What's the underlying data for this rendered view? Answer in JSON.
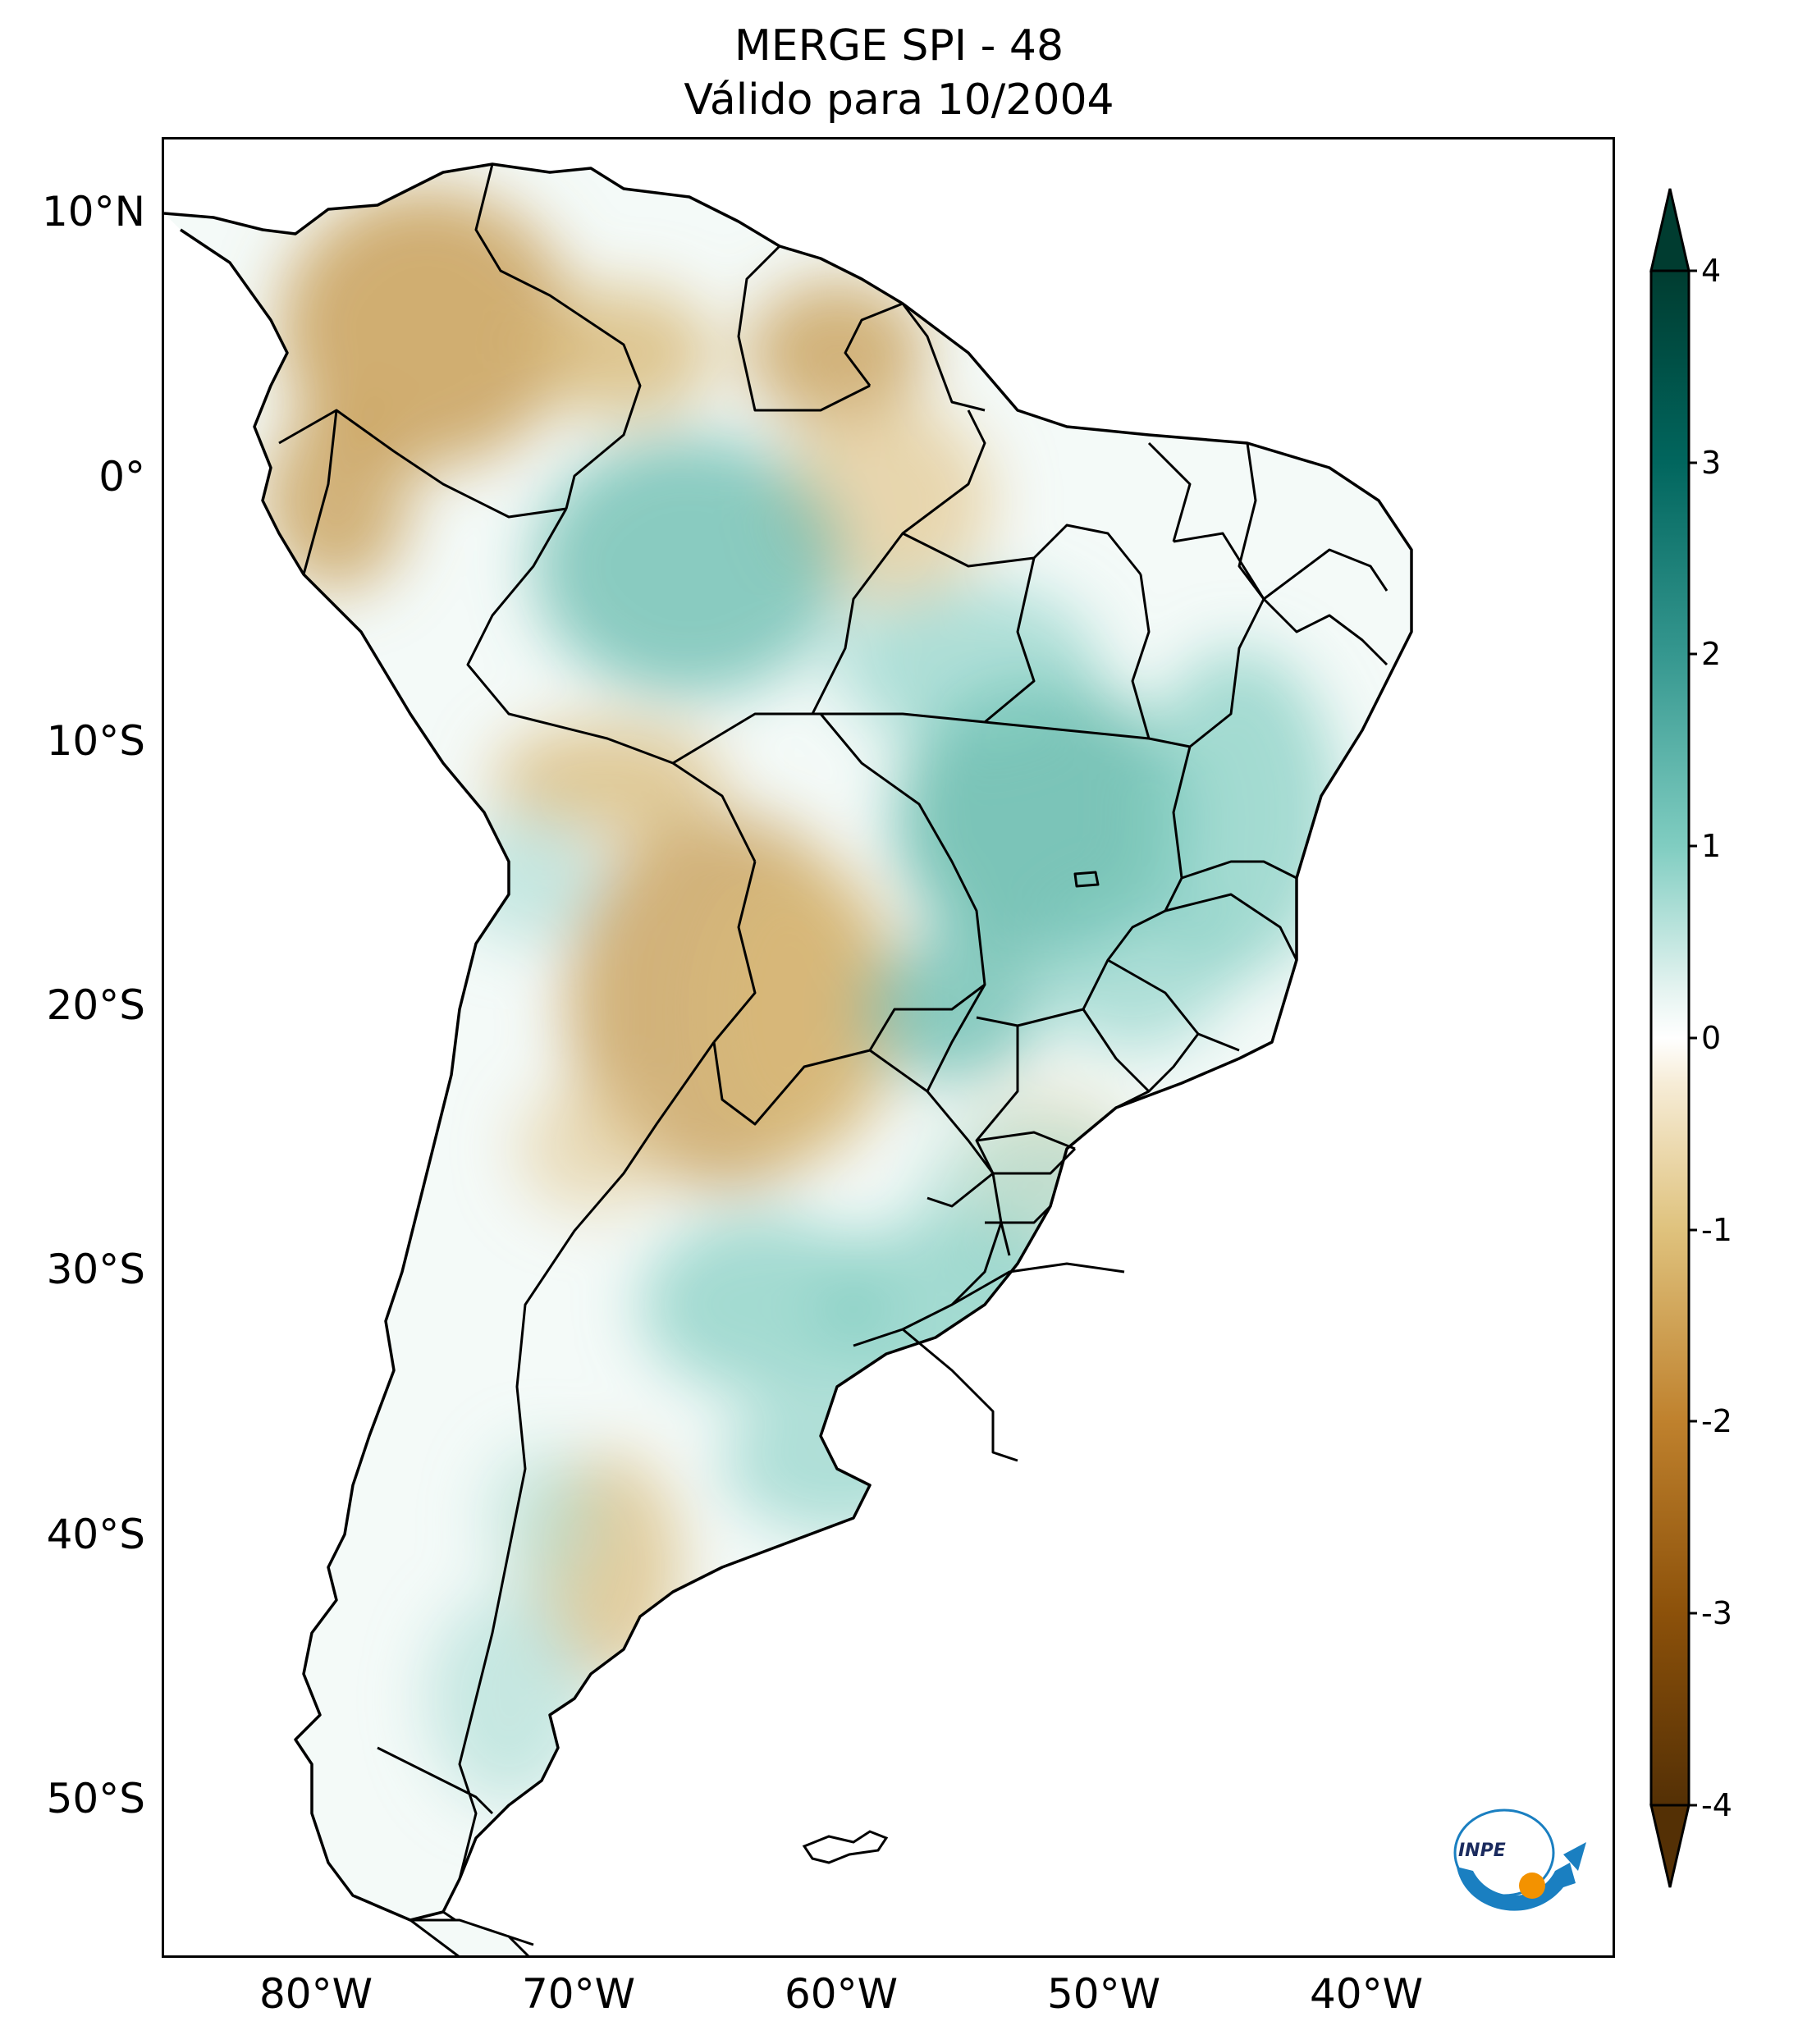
{
  "header": {
    "title_line1": "MERGE   SPI - 48",
    "title_line2": "Válido para 10/2004"
  },
  "map": {
    "region": "South America",
    "lat_ticks": [
      "10°N",
      "0°",
      "10°S",
      "20°S",
      "30°S",
      "40°S",
      "50°S"
    ],
    "lon_ticks": [
      "80°W",
      "70°W",
      "60°W",
      "50°W",
      "40°W"
    ],
    "lat_range": [
      -56,
      13
    ],
    "lon_range": [
      -85,
      -30
    ],
    "land_color_default": "#f7fbfa"
  },
  "colorbar": {
    "ticks": [
      "4",
      "3",
      "2",
      "1",
      "0",
      "-1",
      "-2",
      "-3",
      "-4"
    ],
    "range": [
      -4,
      4
    ],
    "extend": "both",
    "colors": {
      "-4": "#543005",
      "-3": "#8c510a",
      "-2": "#bf812d",
      "-1": "#dfc27d",
      "0": "#ffffff",
      "1": "#80cdc1",
      "2": "#35978f",
      "3": "#01665e",
      "4": "#003c30"
    }
  },
  "logo": {
    "text": "INPE"
  }
}
